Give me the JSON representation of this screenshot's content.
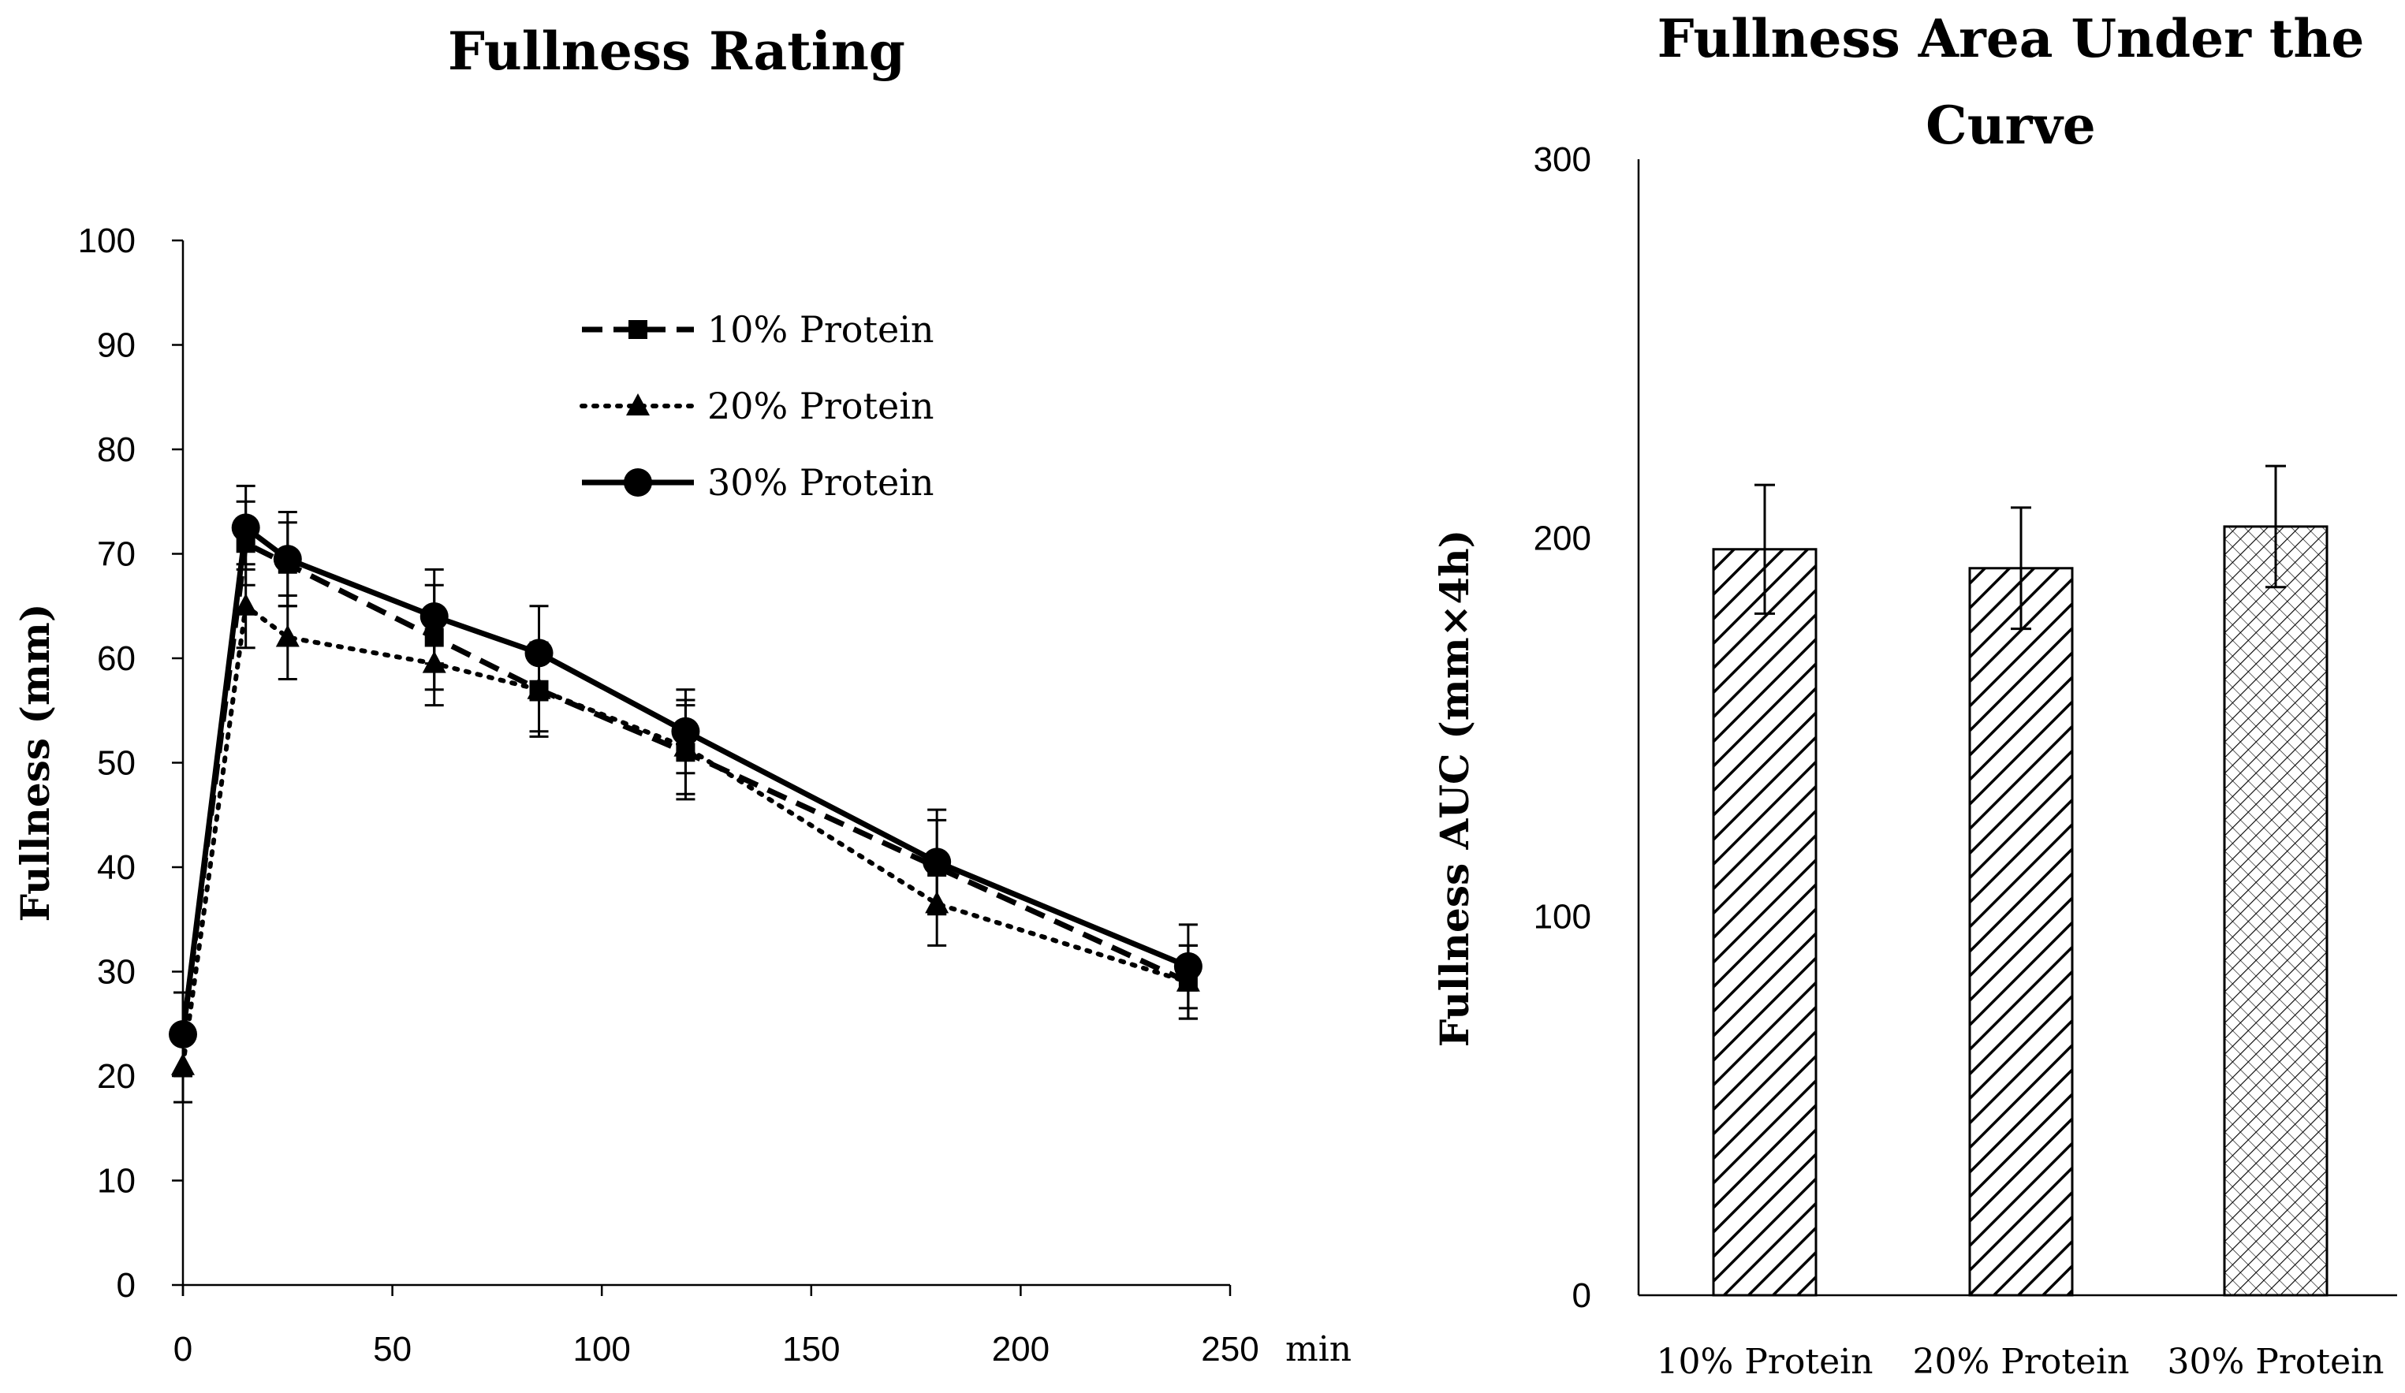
{
  "chart_data": [
    {
      "type": "line",
      "title": "Fullness Rating",
      "xlabel": "min",
      "ylabel": "Fullness (mm)",
      "xlim": [
        0,
        250
      ],
      "ylim": [
        0,
        100
      ],
      "xticks": [
        0,
        50,
        100,
        150,
        200,
        250
      ],
      "yticks": [
        0,
        10,
        20,
        30,
        40,
        50,
        60,
        70,
        80,
        90,
        100
      ],
      "x": [
        0,
        15,
        25,
        60,
        85,
        120,
        180,
        240
      ],
      "series": [
        {
          "name": "10% Protein",
          "line_style": "dashed",
          "marker": "square",
          "values": [
            24,
            71,
            69,
            62,
            57,
            51,
            40,
            29
          ],
          "errors": [
            4,
            4,
            4,
            5,
            4.5,
            4.5,
            4.5,
            3.5
          ]
        },
        {
          "name": "20% Protein",
          "line_style": "dotted",
          "marker": "triangle",
          "values": [
            21,
            65,
            62,
            59.5,
            57,
            51.5,
            36.5,
            29
          ],
          "errors": [
            3.5,
            4,
            4,
            4,
            4,
            4.5,
            4,
            3.5
          ]
        },
        {
          "name": "30% Protein",
          "line_style": "solid",
          "marker": "circle",
          "values": [
            24,
            72.5,
            69.5,
            64,
            60.5,
            53,
            40.5,
            30.5
          ],
          "errors": [
            4,
            4,
            4.5,
            4.5,
            4.5,
            4,
            5,
            4
          ]
        }
      ],
      "legend_position": "top-center"
    },
    {
      "type": "bar",
      "title_lines": [
        "Fullness Area Under the",
        "Curve"
      ],
      "ylabel": "Fullness AUC (mm×4h)",
      "ylim": [
        0,
        300
      ],
      "yticks": [
        0,
        100,
        200,
        300
      ],
      "categories": [
        "10% Protein",
        "20% Protein",
        "30% Protein"
      ],
      "values": [
        197,
        192,
        203
      ],
      "errors": [
        17,
        16,
        16
      ],
      "patterns": [
        "wide-diagonal",
        "wide-diagonal",
        "crosshatch"
      ]
    }
  ]
}
